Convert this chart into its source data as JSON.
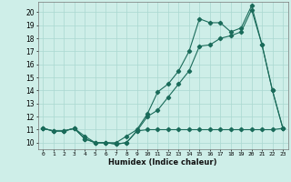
{
  "xlabel": "Humidex (Indice chaleur)",
  "bg_color": "#ceeee8",
  "grid_color": "#aad8d0",
  "line_color": "#1a6b5a",
  "x": [
    0,
    1,
    2,
    3,
    4,
    5,
    6,
    7,
    8,
    9,
    10,
    11,
    12,
    13,
    14,
    15,
    16,
    17,
    18,
    19,
    20,
    21,
    22,
    23
  ],
  "y_high": [
    11.1,
    10.9,
    10.9,
    11.1,
    10.5,
    10.0,
    10.0,
    10.0,
    10.5,
    11.0,
    12.2,
    13.9,
    14.5,
    15.5,
    17.0,
    19.5,
    19.2,
    19.2,
    18.5,
    18.8,
    20.5,
    17.5,
    14.0,
    11.1
  ],
  "y_mid": [
    11.1,
    10.9,
    10.9,
    11.1,
    10.3,
    10.0,
    10.0,
    9.9,
    10.0,
    10.9,
    12.0,
    12.5,
    13.5,
    14.5,
    15.5,
    17.4,
    17.5,
    18.0,
    18.2,
    18.5,
    20.2,
    17.5,
    14.0,
    11.1
  ],
  "y_low": [
    11.1,
    10.9,
    10.9,
    11.1,
    10.3,
    10.0,
    10.0,
    9.9,
    10.0,
    10.9,
    11.0,
    11.0,
    11.0,
    11.0,
    11.0,
    11.0,
    11.0,
    11.0,
    11.0,
    11.0,
    11.0,
    11.0,
    11.0,
    11.1
  ],
  "xlim": [
    -0.5,
    23.5
  ],
  "ylim": [
    9.5,
    20.8
  ],
  "xticks": [
    0,
    1,
    2,
    3,
    4,
    5,
    6,
    7,
    8,
    9,
    10,
    11,
    12,
    13,
    14,
    15,
    16,
    17,
    18,
    19,
    20,
    21,
    22,
    23
  ],
  "yticks": [
    10,
    11,
    12,
    13,
    14,
    15,
    16,
    17,
    18,
    19,
    20
  ],
  "xtick_labels": [
    "0",
    "1",
    "2",
    "3",
    "4",
    "5",
    "6",
    "7",
    "8",
    "9",
    "10",
    "11",
    "12",
    "13",
    "14",
    "15",
    "16",
    "17",
    "18",
    "19",
    "20",
    "21",
    "22",
    "23"
  ]
}
